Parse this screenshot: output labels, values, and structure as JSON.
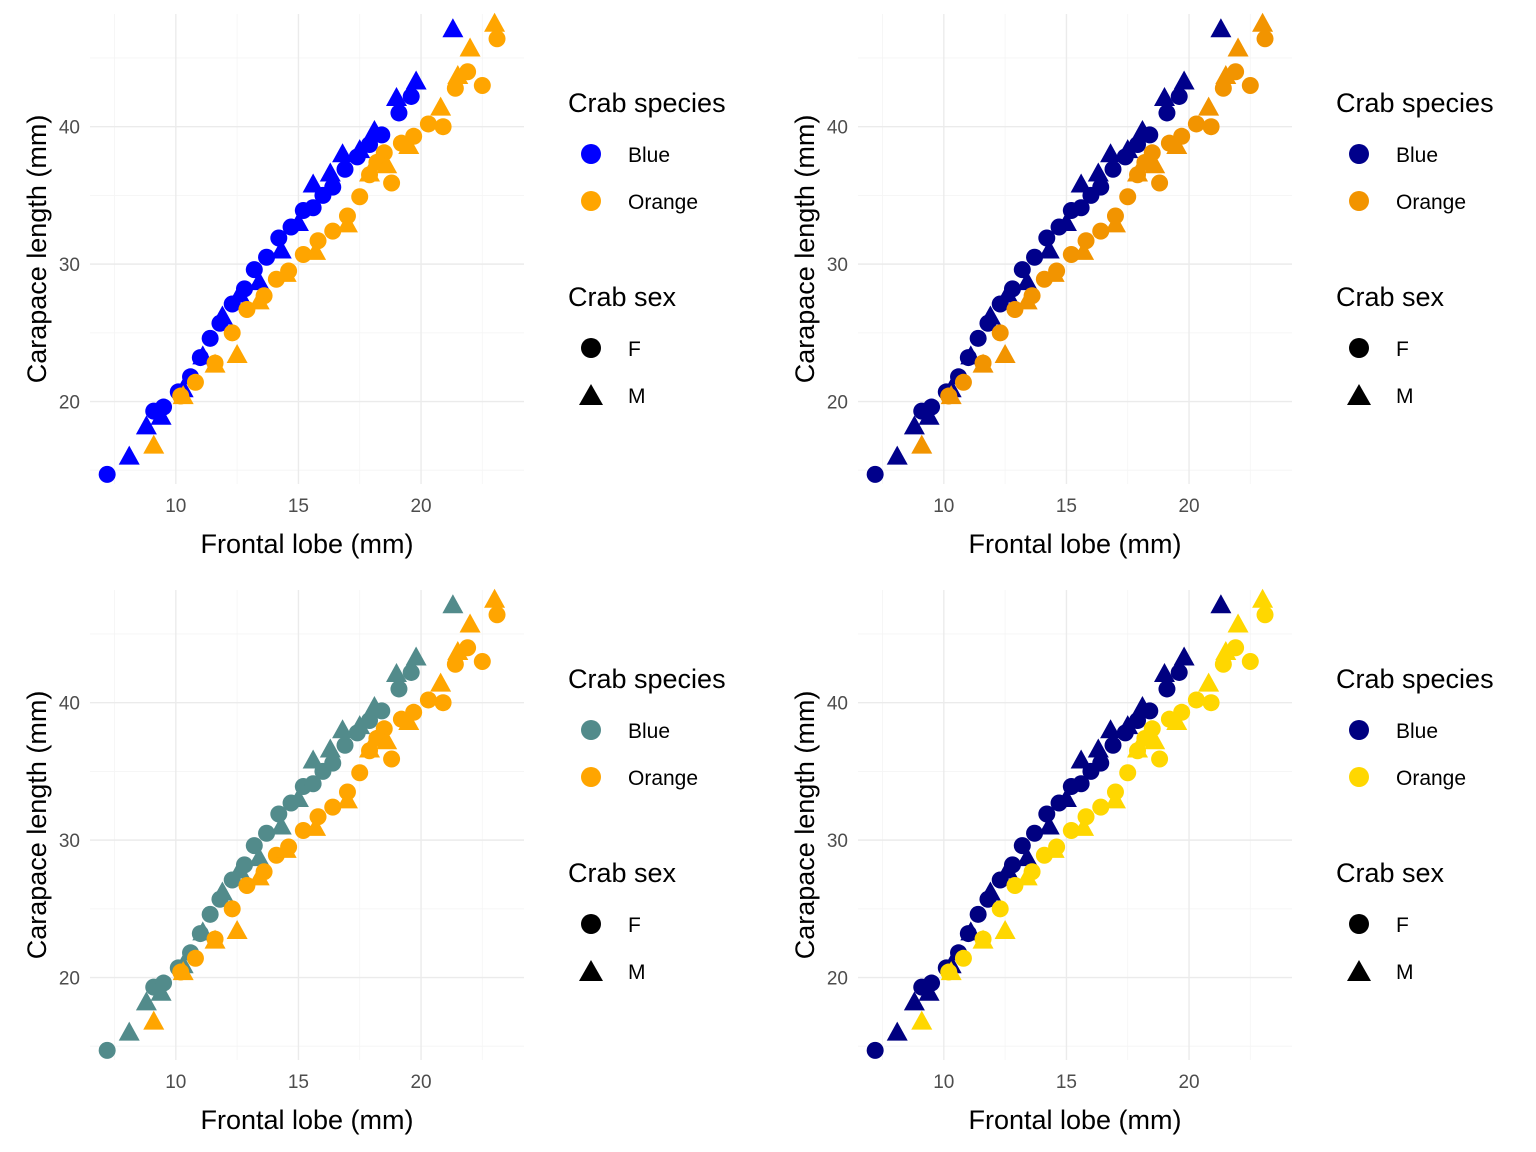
{
  "chart_data": [
    {
      "type": "scatter",
      "xlabel": "Frontal lobe (mm)",
      "ylabel": "Carapace length (mm)",
      "xlim": [
        6.5,
        24.2
      ],
      "ylim": [
        14.0,
        48.2
      ],
      "xticks": [
        10,
        15,
        20
      ],
      "yticks": [
        20,
        30,
        40
      ],
      "grid": true,
      "legend_position": "right",
      "colors": {
        "Blue": "#0000ff",
        "Orange": "#ffa500"
      },
      "legend": {
        "color_title": "Crab species",
        "color_items": [
          "Blue",
          "Orange"
        ],
        "shape_title": "Crab sex",
        "shape_items": [
          "F",
          "M"
        ]
      },
      "series": [
        {
          "species": "Blue",
          "sex": "F",
          "x": [
            7.2,
            9.1,
            9.5,
            10.1,
            10.6,
            11.0,
            11.4,
            11.8,
            12.3,
            12.8,
            13.2,
            13.7,
            14.2,
            14.7,
            15.2,
            15.6,
            16.0,
            16.4,
            16.9,
            17.4,
            17.9,
            18.4,
            19.1,
            19.6
          ],
          "y": [
            14.7,
            19.3,
            19.6,
            20.7,
            21.8,
            23.2,
            24.6,
            25.7,
            27.1,
            28.2,
            29.6,
            30.5,
            31.9,
            32.7,
            33.9,
            34.1,
            35.0,
            35.6,
            36.9,
            37.8,
            38.7,
            39.4,
            41.0,
            42.2
          ]
        },
        {
          "species": "Blue",
          "sex": "M",
          "x": [
            8.1,
            8.8,
            9.4,
            10.3,
            11.1,
            11.9,
            12.6,
            13.4,
            14.3,
            15.0,
            15.6,
            16.3,
            16.8,
            17.5,
            18.1,
            19.0,
            19.8,
            21.3
          ],
          "y": [
            16.1,
            18.3,
            19.0,
            21.0,
            23.4,
            26.3,
            27.9,
            28.8,
            31.1,
            33.1,
            35.9,
            36.7,
            38.1,
            38.4,
            39.8,
            42.2,
            43.4,
            47.2
          ]
        },
        {
          "species": "Orange",
          "sex": "F",
          "x": [
            10.2,
            10.8,
            11.6,
            12.3,
            12.9,
            13.6,
            14.1,
            14.6,
            15.2,
            15.8,
            16.4,
            17.0,
            17.5,
            17.9,
            18.2,
            18.5,
            18.8,
            19.2,
            19.7,
            20.3,
            20.9,
            21.4,
            21.9,
            22.5,
            23.1
          ],
          "y": [
            20.4,
            21.4,
            22.8,
            25.0,
            26.7,
            27.7,
            28.9,
            29.5,
            30.7,
            31.7,
            32.4,
            33.5,
            34.9,
            36.5,
            37.4,
            38.1,
            35.9,
            38.8,
            39.3,
            40.2,
            40.0,
            42.8,
            44.0,
            43.0,
            46.4
          ]
        },
        {
          "species": "Orange",
          "sex": "M",
          "x": [
            9.1,
            10.3,
            11.6,
            12.5,
            13.4,
            14.5,
            15.7,
            17.0,
            17.9,
            18.6,
            19.5,
            20.8,
            21.5,
            22.0,
            23.0
          ],
          "y": [
            16.9,
            20.5,
            22.8,
            23.5,
            27.4,
            29.4,
            31.0,
            33.0,
            36.7,
            37.3,
            38.7,
            41.5,
            43.8,
            45.8,
            47.6
          ]
        }
      ]
    },
    {
      "type": "scatter",
      "xlabel": "Frontal lobe (mm)",
      "ylabel": "Carapace length (mm)",
      "xlim": [
        6.5,
        24.2
      ],
      "ylim": [
        14.0,
        48.2
      ],
      "xticks": [
        10,
        15,
        20
      ],
      "yticks": [
        20,
        30,
        40
      ],
      "grid": true,
      "legend_position": "right",
      "colors": {
        "Blue": "#00008b",
        "Orange": "#f29400"
      },
      "legend": {
        "color_title": "Crab species",
        "color_items": [
          "Blue",
          "Orange"
        ],
        "shape_title": "Crab sex",
        "shape_items": [
          "F",
          "M"
        ]
      },
      "series": [
        {
          "species": "Blue",
          "sex": "F",
          "x": [
            7.2,
            9.1,
            9.5,
            10.1,
            10.6,
            11.0,
            11.4,
            11.8,
            12.3,
            12.8,
            13.2,
            13.7,
            14.2,
            14.7,
            15.2,
            15.6,
            16.0,
            16.4,
            16.9,
            17.4,
            17.9,
            18.4,
            19.1,
            19.6
          ],
          "y": [
            14.7,
            19.3,
            19.6,
            20.7,
            21.8,
            23.2,
            24.6,
            25.7,
            27.1,
            28.2,
            29.6,
            30.5,
            31.9,
            32.7,
            33.9,
            34.1,
            35.0,
            35.6,
            36.9,
            37.8,
            38.7,
            39.4,
            41.0,
            42.2
          ]
        },
        {
          "species": "Blue",
          "sex": "M",
          "x": [
            8.1,
            8.8,
            9.4,
            10.3,
            11.1,
            11.9,
            12.6,
            13.4,
            14.3,
            15.0,
            15.6,
            16.3,
            16.8,
            17.5,
            18.1,
            19.0,
            19.8,
            21.3
          ],
          "y": [
            16.1,
            18.3,
            19.0,
            21.0,
            23.4,
            26.3,
            27.9,
            28.8,
            31.1,
            33.1,
            35.9,
            36.7,
            38.1,
            38.4,
            39.8,
            42.2,
            43.4,
            47.2
          ]
        },
        {
          "species": "Orange",
          "sex": "F",
          "x": [
            10.2,
            10.8,
            11.6,
            12.3,
            12.9,
            13.6,
            14.1,
            14.6,
            15.2,
            15.8,
            16.4,
            17.0,
            17.5,
            17.9,
            18.2,
            18.5,
            18.8,
            19.2,
            19.7,
            20.3,
            20.9,
            21.4,
            21.9,
            22.5,
            23.1
          ],
          "y": [
            20.4,
            21.4,
            22.8,
            25.0,
            26.7,
            27.7,
            28.9,
            29.5,
            30.7,
            31.7,
            32.4,
            33.5,
            34.9,
            36.5,
            37.4,
            38.1,
            35.9,
            38.8,
            39.3,
            40.2,
            40.0,
            42.8,
            44.0,
            43.0,
            46.4
          ]
        },
        {
          "species": "Orange",
          "sex": "M",
          "x": [
            9.1,
            10.3,
            11.6,
            12.5,
            13.4,
            14.5,
            15.7,
            17.0,
            17.9,
            18.6,
            19.5,
            20.8,
            21.5,
            22.0,
            23.0
          ],
          "y": [
            16.9,
            20.5,
            22.8,
            23.5,
            27.4,
            29.4,
            31.0,
            33.0,
            36.7,
            37.3,
            38.7,
            41.5,
            43.8,
            45.8,
            47.6
          ]
        }
      ]
    },
    {
      "type": "scatter",
      "xlabel": "Frontal lobe (mm)",
      "ylabel": "Carapace length (mm)",
      "xlim": [
        6.5,
        24.2
      ],
      "ylim": [
        14.0,
        48.2
      ],
      "xticks": [
        10,
        15,
        20
      ],
      "yticks": [
        20,
        30,
        40
      ],
      "grid": true,
      "legend_position": "right",
      "colors": {
        "Blue": "#528b8b",
        "Orange": "#ffa500"
      },
      "legend": {
        "color_title": "Crab species",
        "color_items": [
          "Blue",
          "Orange"
        ],
        "shape_title": "Crab sex",
        "shape_items": [
          "F",
          "M"
        ]
      },
      "series": [
        {
          "species": "Blue",
          "sex": "F",
          "x": [
            7.2,
            9.1,
            9.5,
            10.1,
            10.6,
            11.0,
            11.4,
            11.8,
            12.3,
            12.8,
            13.2,
            13.7,
            14.2,
            14.7,
            15.2,
            15.6,
            16.0,
            16.4,
            16.9,
            17.4,
            17.9,
            18.4,
            19.1,
            19.6
          ],
          "y": [
            14.7,
            19.3,
            19.6,
            20.7,
            21.8,
            23.2,
            24.6,
            25.7,
            27.1,
            28.2,
            29.6,
            30.5,
            31.9,
            32.7,
            33.9,
            34.1,
            35.0,
            35.6,
            36.9,
            37.8,
            38.7,
            39.4,
            41.0,
            42.2
          ]
        },
        {
          "species": "Blue",
          "sex": "M",
          "x": [
            8.1,
            8.8,
            9.4,
            10.3,
            11.1,
            11.9,
            12.6,
            13.4,
            14.3,
            15.0,
            15.6,
            16.3,
            16.8,
            17.5,
            18.1,
            19.0,
            19.8,
            21.3
          ],
          "y": [
            16.1,
            18.3,
            19.0,
            21.0,
            23.4,
            26.3,
            27.9,
            28.8,
            31.1,
            33.1,
            35.9,
            36.7,
            38.1,
            38.4,
            39.8,
            42.2,
            43.4,
            47.2
          ]
        },
        {
          "species": "Orange",
          "sex": "F",
          "x": [
            10.2,
            10.8,
            11.6,
            12.3,
            12.9,
            13.6,
            14.1,
            14.6,
            15.2,
            15.8,
            16.4,
            17.0,
            17.5,
            17.9,
            18.2,
            18.5,
            18.8,
            19.2,
            19.7,
            20.3,
            20.9,
            21.4,
            21.9,
            22.5,
            23.1
          ],
          "y": [
            20.4,
            21.4,
            22.8,
            25.0,
            26.7,
            27.7,
            28.9,
            29.5,
            30.7,
            31.7,
            32.4,
            33.5,
            34.9,
            36.5,
            37.4,
            38.1,
            35.9,
            38.8,
            39.3,
            40.2,
            40.0,
            42.8,
            44.0,
            43.0,
            46.4
          ]
        },
        {
          "species": "Orange",
          "sex": "M",
          "x": [
            9.1,
            10.3,
            11.6,
            12.5,
            13.4,
            14.5,
            15.7,
            17.0,
            17.9,
            18.6,
            19.5,
            20.8,
            21.5,
            22.0,
            23.0
          ],
          "y": [
            16.9,
            20.5,
            22.8,
            23.5,
            27.4,
            29.4,
            31.0,
            33.0,
            36.7,
            37.3,
            38.7,
            41.5,
            43.8,
            45.8,
            47.6
          ]
        }
      ]
    },
    {
      "type": "scatter",
      "xlabel": "Frontal lobe (mm)",
      "ylabel": "Carapace length (mm)",
      "xlim": [
        6.5,
        24.2
      ],
      "ylim": [
        14.0,
        48.2
      ],
      "xticks": [
        10,
        15,
        20
      ],
      "yticks": [
        20,
        30,
        40
      ],
      "grid": true,
      "legend_position": "right",
      "colors": {
        "Blue": "#000080",
        "Orange": "#ffd700"
      },
      "legend": {
        "color_title": "Crab species",
        "color_items": [
          "Blue",
          "Orange"
        ],
        "shape_title": "Crab sex",
        "shape_items": [
          "F",
          "M"
        ]
      },
      "series": [
        {
          "species": "Blue",
          "sex": "F",
          "x": [
            7.2,
            9.1,
            9.5,
            10.1,
            10.6,
            11.0,
            11.4,
            11.8,
            12.3,
            12.8,
            13.2,
            13.7,
            14.2,
            14.7,
            15.2,
            15.6,
            16.0,
            16.4,
            16.9,
            17.4,
            17.9,
            18.4,
            19.1,
            19.6
          ],
          "y": [
            14.7,
            19.3,
            19.6,
            20.7,
            21.8,
            23.2,
            24.6,
            25.7,
            27.1,
            28.2,
            29.6,
            30.5,
            31.9,
            32.7,
            33.9,
            34.1,
            35.0,
            35.6,
            36.9,
            37.8,
            38.7,
            39.4,
            41.0,
            42.2
          ]
        },
        {
          "species": "Blue",
          "sex": "M",
          "x": [
            8.1,
            8.8,
            9.4,
            10.3,
            11.1,
            11.9,
            12.6,
            13.4,
            14.3,
            15.0,
            15.6,
            16.3,
            16.8,
            17.5,
            18.1,
            19.0,
            19.8,
            21.3
          ],
          "y": [
            16.1,
            18.3,
            19.0,
            21.0,
            23.4,
            26.3,
            27.9,
            28.8,
            31.1,
            33.1,
            35.9,
            36.7,
            38.1,
            38.4,
            39.8,
            42.2,
            43.4,
            47.2
          ]
        },
        {
          "species": "Orange",
          "sex": "F",
          "x": [
            10.2,
            10.8,
            11.6,
            12.3,
            12.9,
            13.6,
            14.1,
            14.6,
            15.2,
            15.8,
            16.4,
            17.0,
            17.5,
            17.9,
            18.2,
            18.5,
            18.8,
            19.2,
            19.7,
            20.3,
            20.9,
            21.4,
            21.9,
            22.5,
            23.1
          ],
          "y": [
            20.4,
            21.4,
            22.8,
            25.0,
            26.7,
            27.7,
            28.9,
            29.5,
            30.7,
            31.7,
            32.4,
            33.5,
            34.9,
            36.5,
            37.4,
            38.1,
            35.9,
            38.8,
            39.3,
            40.2,
            40.0,
            42.8,
            44.0,
            43.0,
            46.4
          ]
        },
        {
          "species": "Orange",
          "sex": "M",
          "x": [
            9.1,
            10.3,
            11.6,
            12.5,
            13.4,
            14.5,
            15.7,
            17.0,
            17.9,
            18.6,
            19.5,
            20.8,
            21.5,
            22.0,
            23.0
          ],
          "y": [
            16.9,
            20.5,
            22.8,
            23.5,
            27.4,
            29.4,
            31.0,
            33.0,
            36.7,
            37.3,
            38.7,
            41.5,
            43.8,
            45.8,
            47.6
          ]
        }
      ]
    }
  ]
}
